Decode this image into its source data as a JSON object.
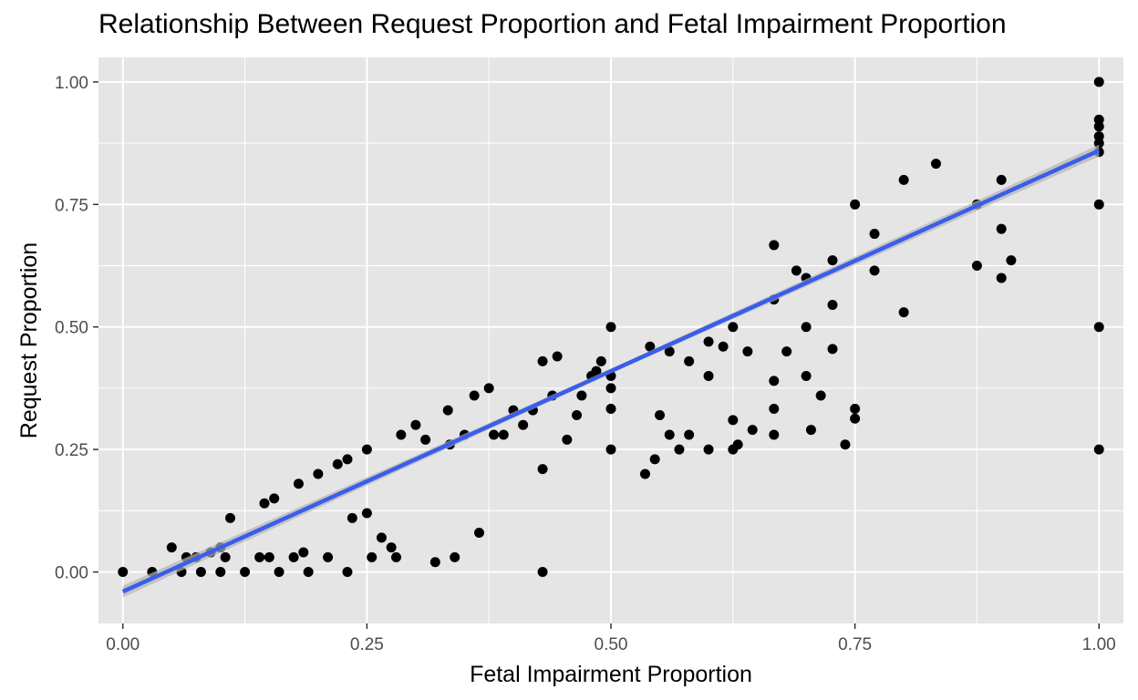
{
  "chart_data": {
    "type": "scatter",
    "title": "Relationship Between Request Proportion and Fetal Impairment Proportion",
    "xlabel": "Fetal Impairment Proportion",
    "ylabel": "Request Proportion",
    "xlim": [
      -0.025,
      1.025
    ],
    "ylim": [
      -0.105,
      1.05
    ],
    "x_ticks": [
      0,
      0.25,
      0.5,
      0.75,
      1
    ],
    "x_tick_labels": [
      "0.00",
      "0.25",
      "0.50",
      "0.75",
      "1.00"
    ],
    "y_ticks": [
      0,
      0.25,
      0.5,
      0.75,
      1
    ],
    "y_tick_labels": [
      "0.00",
      "0.25",
      "0.50",
      "0.75",
      "1.00"
    ],
    "grid": true,
    "legend": "none",
    "colors": {
      "panel": "#e5e5e5",
      "grid": "#ffffff",
      "points": "#000000",
      "trend": "#3a5ee8",
      "ribbon": "#b3b3b3"
    },
    "trend_line": {
      "method": "linear",
      "intercept": -0.04,
      "slope": 0.9,
      "se_ribbon": true
    },
    "points": [
      [
        0,
        0
      ],
      [
        0.03,
        0
      ],
      [
        0.05,
        0.05
      ],
      [
        0.06,
        0
      ],
      [
        0.065,
        0.03
      ],
      [
        0.075,
        0.03
      ],
      [
        0.08,
        0
      ],
      [
        0.09,
        0.04
      ],
      [
        0.1,
        0.05
      ],
      [
        0.1,
        0
      ],
      [
        0.105,
        0.03
      ],
      [
        0.11,
        0.11
      ],
      [
        0.125,
        0
      ],
      [
        0.14,
        0.03
      ],
      [
        0.145,
        0.14
      ],
      [
        0.15,
        0.03
      ],
      [
        0.155,
        0.15
      ],
      [
        0.16,
        0
      ],
      [
        0.175,
        0.03
      ],
      [
        0.18,
        0.18
      ],
      [
        0.185,
        0.04
      ],
      [
        0.19,
        0
      ],
      [
        0.2,
        0.2
      ],
      [
        0.21,
        0.03
      ],
      [
        0.22,
        0.22
      ],
      [
        0.23,
        0.23
      ],
      [
        0.23,
        0
      ],
      [
        0.235,
        0.11
      ],
      [
        0.25,
        0.25
      ],
      [
        0.25,
        0.12
      ],
      [
        0.255,
        0.03
      ],
      [
        0.265,
        0.07
      ],
      [
        0.275,
        0.05
      ],
      [
        0.28,
        0.03
      ],
      [
        0.285,
        0.28
      ],
      [
        0.3,
        0.3
      ],
      [
        0.31,
        0.27
      ],
      [
        0.32,
        0.02
      ],
      [
        0.333,
        0.33
      ],
      [
        0.335,
        0.26
      ],
      [
        0.34,
        0.03
      ],
      [
        0.35,
        0.28
      ],
      [
        0.36,
        0.36
      ],
      [
        0.365,
        0.08
      ],
      [
        0.375,
        0.375
      ],
      [
        0.38,
        0.28
      ],
      [
        0.39,
        0.28
      ],
      [
        0.4,
        0.33
      ],
      [
        0.41,
        0.3
      ],
      [
        0.42,
        0.33
      ],
      [
        0.43,
        0.43
      ],
      [
        0.43,
        0.21
      ],
      [
        0.43,
        0
      ],
      [
        0.44,
        0.36
      ],
      [
        0.445,
        0.44
      ],
      [
        0.455,
        0.27
      ],
      [
        0.465,
        0.32
      ],
      [
        0.47,
        0.36
      ],
      [
        0.48,
        0.4
      ],
      [
        0.485,
        0.41
      ],
      [
        0.49,
        0.43
      ],
      [
        0.5,
        0.5
      ],
      [
        0.5,
        0.4
      ],
      [
        0.5,
        0.375
      ],
      [
        0.5,
        0.333
      ],
      [
        0.5,
        0.25
      ],
      [
        0.535,
        0.2
      ],
      [
        0.54,
        0.46
      ],
      [
        0.545,
        0.23
      ],
      [
        0.55,
        0.32
      ],
      [
        0.56,
        0.45
      ],
      [
        0.56,
        0.28
      ],
      [
        0.57,
        0.25
      ],
      [
        0.58,
        0.43
      ],
      [
        0.58,
        0.28
      ],
      [
        0.6,
        0.47
      ],
      [
        0.6,
        0.4
      ],
      [
        0.6,
        0.25
      ],
      [
        0.615,
        0.46
      ],
      [
        0.625,
        0.5
      ],
      [
        0.625,
        0.31
      ],
      [
        0.625,
        0.25
      ],
      [
        0.63,
        0.26
      ],
      [
        0.64,
        0.45
      ],
      [
        0.645,
        0.29
      ],
      [
        0.667,
        0.667
      ],
      [
        0.667,
        0.556
      ],
      [
        0.667,
        0.39
      ],
      [
        0.667,
        0.333
      ],
      [
        0.667,
        0.28
      ],
      [
        0.68,
        0.45
      ],
      [
        0.69,
        0.615
      ],
      [
        0.7,
        0.6
      ],
      [
        0.7,
        0.5
      ],
      [
        0.7,
        0.4
      ],
      [
        0.705,
        0.29
      ],
      [
        0.715,
        0.36
      ],
      [
        0.727,
        0.636
      ],
      [
        0.727,
        0.545
      ],
      [
        0.727,
        0.455
      ],
      [
        0.74,
        0.26
      ],
      [
        0.75,
        0.75
      ],
      [
        0.75,
        0.333
      ],
      [
        0.75,
        0.313
      ],
      [
        0.77,
        0.69
      ],
      [
        0.77,
        0.615
      ],
      [
        0.8,
        0.8
      ],
      [
        0.8,
        0.53
      ],
      [
        0.833,
        0.833
      ],
      [
        0.875,
        0.75
      ],
      [
        0.875,
        0.625
      ],
      [
        0.9,
        0.8
      ],
      [
        0.9,
        0.7
      ],
      [
        0.9,
        0.6
      ],
      [
        0.91,
        0.636
      ],
      [
        1,
        1
      ],
      [
        1,
        0.923
      ],
      [
        1,
        0.909
      ],
      [
        1,
        0.889
      ],
      [
        1,
        0.875
      ],
      [
        1,
        0.857
      ],
      [
        1,
        0.75
      ],
      [
        1,
        0.5
      ],
      [
        1,
        0.25
      ]
    ]
  }
}
